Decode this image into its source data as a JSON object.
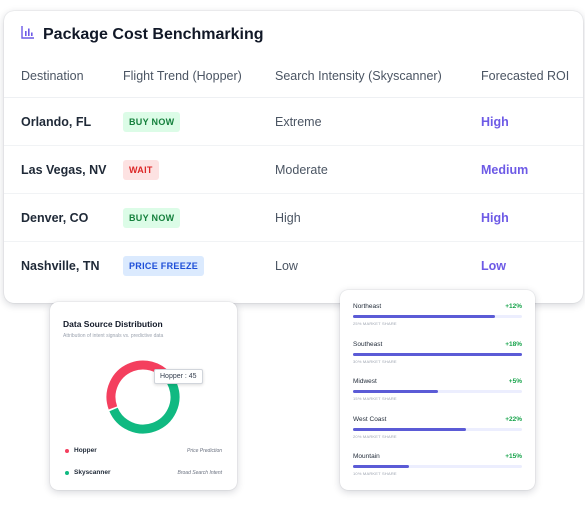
{
  "benchmark": {
    "title": "Package Cost Benchmarking",
    "title_icon": "bar-chart-icon",
    "columns": [
      "Destination",
      "Flight Trend (Hopper)",
      "Search Intensity (Skyscanner)",
      "Forecasted ROI"
    ],
    "rows": [
      {
        "destination": "Orlando, FL",
        "trend": "BUY NOW",
        "intensity": "Extreme",
        "roi": "High"
      },
      {
        "destination": "Las Vegas, NV",
        "trend": "WAIT",
        "intensity": "Moderate",
        "roi": "Medium"
      },
      {
        "destination": "Denver, CO",
        "trend": "BUY NOW",
        "intensity": "High",
        "roi": "High"
      },
      {
        "destination": "Nashville, TN",
        "trend": "PRICE FREEZE",
        "intensity": "Low",
        "roi": "Low"
      }
    ],
    "badge_colors": {
      "BUY NOW": {
        "bg": "#dcfce7",
        "fg": "#15803d"
      },
      "WAIT": {
        "bg": "#fde2e2",
        "fg": "#dc2626"
      },
      "PRICE FREEZE": {
        "bg": "#dbeafe",
        "fg": "#1d4ed8"
      }
    },
    "roi_color": "#6d5ae6"
  },
  "distribution": {
    "title": "Data Source Distribution",
    "subtitle": "Attribution of intent signals vs. predictive data",
    "tooltip": "Hopper : 45",
    "legend": [
      {
        "name": "Hopper",
        "role": "Price Prediction",
        "color": "#f43f5e",
        "value": 45
      },
      {
        "name": "Skyscanner",
        "role": "Broad Search Intent",
        "color": "#10b981",
        "value": 55
      }
    ]
  },
  "regions": {
    "items": [
      {
        "name": "Northeast",
        "growth": "+12%",
        "share": "25% MARKET SHARE",
        "fill": 0.84
      },
      {
        "name": "Southeast",
        "growth": "+18%",
        "share": "30% MARKET SHARE",
        "fill": 1.0
      },
      {
        "name": "Midwest",
        "growth": "+5%",
        "share": "15% MARKET SHARE",
        "fill": 0.5
      },
      {
        "name": "West Coast",
        "growth": "+22%",
        "share": "20% MARKET SHARE",
        "fill": 0.67
      },
      {
        "name": "Mountain",
        "growth": "+15%",
        "share": "10% MARKET SHARE",
        "fill": 0.33
      }
    ],
    "bar_color": "#5b5bd6",
    "growth_color": "#16a34a"
  }
}
